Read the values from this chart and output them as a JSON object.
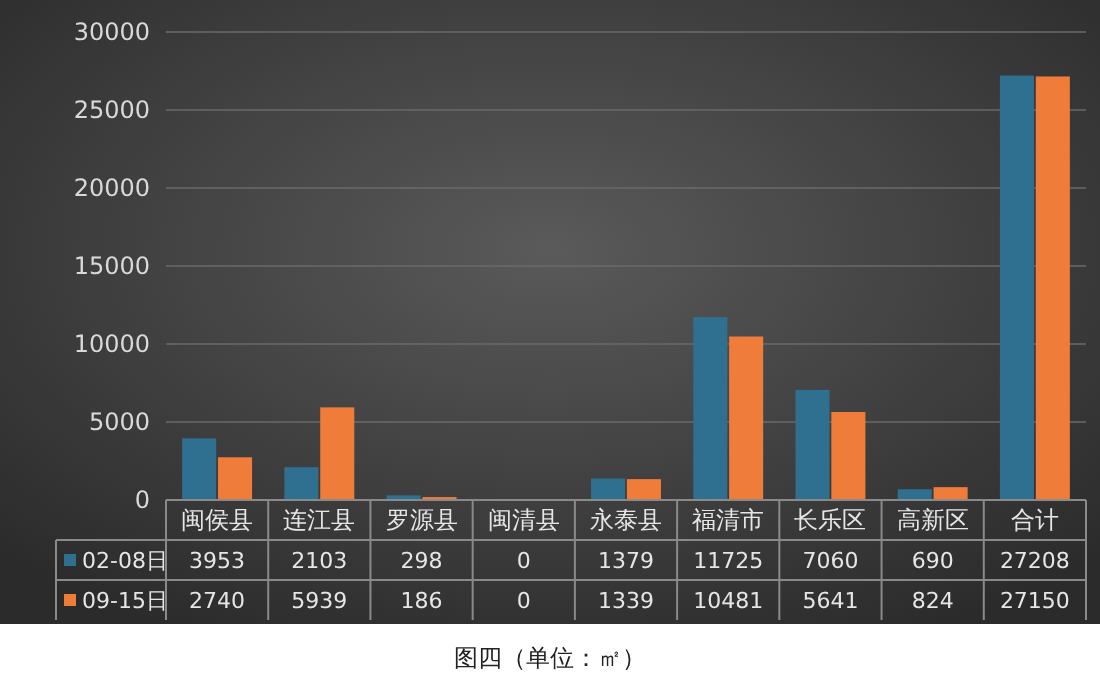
{
  "chart_data": {
    "type": "bar",
    "title": "图四（单位：㎡）",
    "categories": [
      "闽侯县",
      "连江县",
      "罗源县",
      "闽清县",
      "永泰县",
      "福清市",
      "长乐区",
      "高新区",
      "合计"
    ],
    "series": [
      {
        "name": "02-08日",
        "color": "#2f6f8f",
        "values": [
          3953,
          2103,
          298,
          0,
          1379,
          11725,
          7060,
          690,
          27208
        ]
      },
      {
        "name": "09-15日",
        "color": "#f07c3a",
        "values": [
          2740,
          5939,
          186,
          0,
          1339,
          10481,
          5641,
          824,
          27150
        ]
      }
    ],
    "ylim": [
      0,
      30000
    ],
    "yticks": [
      0,
      5000,
      10000,
      15000,
      20000,
      25000,
      30000
    ],
    "grid": "y",
    "legend": "bottom",
    "data_labels": true
  }
}
